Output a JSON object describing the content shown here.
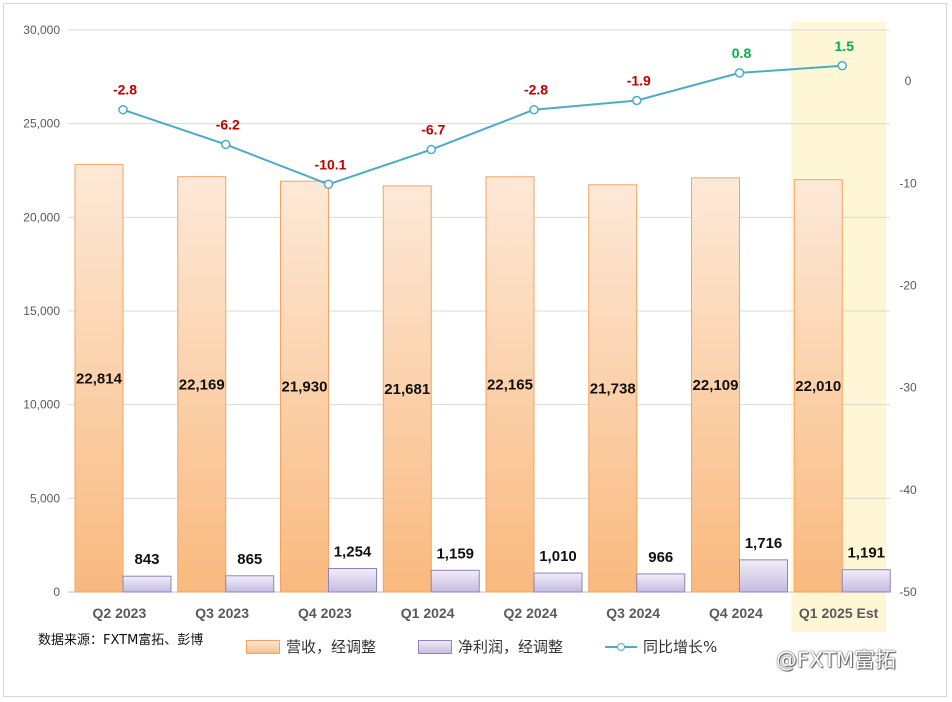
{
  "chart_data": {
    "type": "bar",
    "categories": [
      "Q2 2023",
      "Q3 2023",
      "Q4 2023",
      "Q1 2024",
      "Q2 2024",
      "Q3 2024",
      "Q4 2024",
      "Q1 2025 Est"
    ],
    "series": [
      {
        "name": "营收，经调整",
        "axis": "left",
        "type": "bar",
        "values": [
          22814,
          22169,
          21930,
          21681,
          22165,
          21738,
          22109,
          22010
        ],
        "labels": [
          "22,814",
          "22,169",
          "21,930",
          "21,681",
          "22,165",
          "21,738",
          "22,109",
          "22,010"
        ]
      },
      {
        "name": "净利润，经调整",
        "axis": "left",
        "type": "bar",
        "values": [
          843,
          865,
          1254,
          1159,
          1010,
          966,
          1716,
          1191
        ],
        "labels": [
          "843",
          "865",
          "1,254",
          "1,159",
          "1,010",
          "966",
          "1,716",
          "1,191"
        ]
      },
      {
        "name": "同比增长%",
        "axis": "right",
        "type": "line",
        "values": [
          -2.8,
          -6.2,
          -10.1,
          -6.7,
          -2.8,
          -1.9,
          0.8,
          1.5
        ],
        "labels": [
          "-2.8",
          "-6.2",
          "-10.1",
          "-6.7",
          "-2.8",
          "-1.9",
          "0.8",
          "1.5"
        ]
      }
    ],
    "ylim_left": [
      0,
      30000
    ],
    "yticks_left": [
      "0",
      "5,000",
      "10,000",
      "15,000",
      "20,000",
      "25,000",
      "30,000"
    ],
    "ylim_right": [
      -50,
      5
    ],
    "yticks_right": [
      "0",
      "-10",
      "-20",
      "-30",
      "-40",
      "-50"
    ],
    "highlight_category": "Q1 2025 Est",
    "grid": true,
    "legend_position": "bottom",
    "colors": {
      "revenue_edge": "#f4a460",
      "net_edge": "#8f82bd",
      "line": "#4bacc6",
      "negative": "#c00000",
      "positive": "#00b050",
      "highlight": "#fff6d5"
    }
  },
  "source_note": "数据来源：FXTM富拓、彭博",
  "legend": {
    "revenue": "营收，经调整",
    "net": "净利润，经调整",
    "growth": "同比增长%"
  },
  "watermark": "@FXTM富拓"
}
